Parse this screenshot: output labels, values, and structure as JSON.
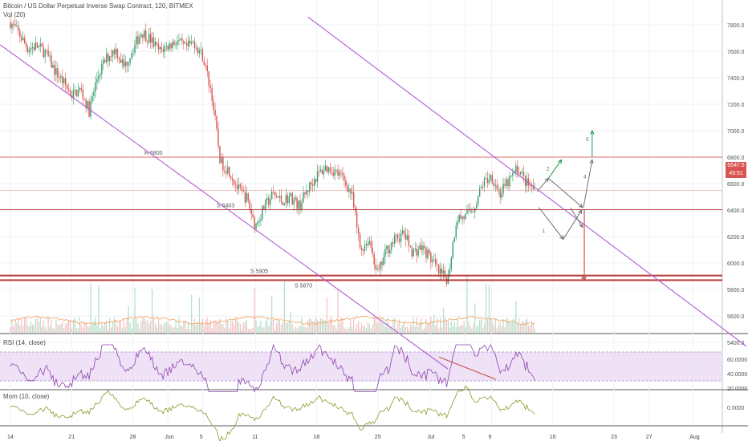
{
  "header": {
    "symbol_line": "Bitcoin / US Dollar Perpetual Inverse Swap Contract, 120, BITMEX",
    "volume_label": "Vol (20)"
  },
  "rsi": {
    "label": "RSI (14, close)"
  },
  "mom": {
    "label": "Mom (10, close)"
  },
  "badges": {
    "last_price": "6547.5",
    "countdown": "49:51"
  },
  "colors": {
    "up": "#2e9e6b",
    "down": "#d9534f",
    "resistance": "#d9534f",
    "support": "#b22222",
    "channel": "#b05ad6",
    "rsi_line": "#8e44ad",
    "rsi_band": "#e8d5f2",
    "mom_line": "#8a9a2a",
    "arrow_gray": "#707070",
    "arrow_green": "#1a9e4a",
    "arrow_red": "#c0392b"
  },
  "chart_data": {
    "type": "candlestick",
    "price_axis": {
      "ticks": [
        7800,
        7600,
        7400,
        7200,
        7000,
        6800,
        6600,
        6400,
        6200,
        6000,
        5800,
        5600,
        5400
      ],
      "tick_labels": [
        "7800.0",
        "7600.0",
        "7400.0",
        "7200.0",
        "7000.0",
        "6800.0",
        "6600.0",
        "6400.0",
        "6200.0",
        "6000.0",
        "5800.0",
        "5600.0",
        "5400.0"
      ]
    },
    "rsi_axis": {
      "ticks": [
        60,
        40,
        20
      ],
      "tick_labels": [
        "60.0000",
        "40.0000",
        "20.0000"
      ],
      "band": [
        30,
        70
      ]
    },
    "mom_axis": {
      "ticks": [
        0
      ],
      "tick_labels": [
        "0.0000"
      ]
    },
    "x_axis": {
      "ticks": [
        {
          "day": 14,
          "label": "14"
        },
        {
          "day": 21,
          "label": "21"
        },
        {
          "day": 28,
          "label": "28"
        },
        {
          "day": 32,
          "label": "Jun"
        },
        {
          "day": 36,
          "label": "5"
        },
        {
          "day": 42,
          "label": "11"
        },
        {
          "day": 49,
          "label": "18"
        },
        {
          "day": 56,
          "label": "25"
        },
        {
          "day": 62,
          "label": "Jul"
        },
        {
          "day": 66,
          "label": "5"
        },
        {
          "day": 69,
          "label": "9"
        },
        {
          "day": 76,
          "label": "16"
        },
        {
          "day": 83,
          "label": "23"
        },
        {
          "day": 87,
          "label": "27"
        },
        {
          "day": 92,
          "label": "Aug"
        }
      ]
    },
    "price_path": [
      [
        14,
        7820
      ],
      [
        15,
        7730
      ],
      [
        16,
        7620
      ],
      [
        17,
        7640
      ],
      [
        18,
        7590
      ],
      [
        19,
        7460
      ],
      [
        20,
        7370
      ],
      [
        21,
        7270
      ],
      [
        22,
        7310
      ],
      [
        23,
        7150
      ],
      [
        24,
        7420
      ],
      [
        25,
        7550
      ],
      [
        26,
        7620
      ],
      [
        27,
        7480
      ],
      [
        28,
        7620
      ],
      [
        29,
        7750
      ],
      [
        30,
        7690
      ],
      [
        31,
        7600
      ],
      [
        32,
        7640
      ],
      [
        33,
        7680
      ],
      [
        34,
        7620
      ],
      [
        35,
        7670
      ],
      [
        36,
        7560
      ],
      [
        37,
        7280
      ],
      [
        38,
        6760
      ],
      [
        39,
        6700
      ],
      [
        40,
        6560
      ],
      [
        41,
        6490
      ],
      [
        42,
        6280
      ],
      [
        43,
        6420
      ],
      [
        44,
        6520
      ],
      [
        45,
        6470
      ],
      [
        46,
        6500
      ],
      [
        47,
        6430
      ],
      [
        48,
        6560
      ],
      [
        49,
        6660
      ],
      [
        50,
        6720
      ],
      [
        51,
        6700
      ],
      [
        52,
        6640
      ],
      [
        53,
        6520
      ],
      [
        54,
        6100
      ],
      [
        55,
        6180
      ],
      [
        56,
        5910
      ],
      [
        57,
        6100
      ],
      [
        58,
        6180
      ],
      [
        59,
        6220
      ],
      [
        60,
        6080
      ],
      [
        61,
        6120
      ],
      [
        62,
        6040
      ],
      [
        63,
        5920
      ],
      [
        64,
        5880
      ],
      [
        65,
        6340
      ],
      [
        66,
        6350
      ],
      [
        67,
        6420
      ],
      [
        68,
        6600
      ],
      [
        69,
        6660
      ],
      [
        70,
        6520
      ],
      [
        71,
        6620
      ],
      [
        72,
        6720
      ],
      [
        73,
        6600
      ],
      [
        74,
        6547
      ]
    ],
    "levels": [
      {
        "label": "R 6800",
        "value": 6800,
        "kind": "resistance"
      },
      {
        "label": "",
        "value": 6547.5,
        "kind": "current"
      },
      {
        "label": "S 6403",
        "value": 6403,
        "kind": "support"
      },
      {
        "label": "S 5905",
        "value": 5905,
        "kind": "support_strong"
      },
      {
        "label": "S 5870",
        "value": 5870,
        "kind": "support_strong"
      }
    ],
    "projection_labels": [
      "1",
      "2",
      "3",
      "4",
      "5"
    ]
  }
}
